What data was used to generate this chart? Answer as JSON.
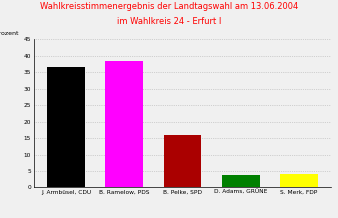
{
  "title_line1": "Wahlkreisstimmenergebnis der Landtagswahl am 13.06.2004",
  "title_line2": "im Wahlkreis 24 - Erfurt I",
  "title_color": "#ff0000",
  "ylabel": "Prozent",
  "categories": [
    "J. Armbüsel, CDU",
    "B. Ramelow, PDS",
    "B. Pelke, SPD",
    "D. Adams, GRÜNE",
    "S. Merk, FDP"
  ],
  "values": [
    36.5,
    38.5,
    16.0,
    3.8,
    4.0
  ],
  "bar_colors": [
    "#000000",
    "#ff00ff",
    "#aa0000",
    "#008000",
    "#ffff00"
  ],
  "ylim": [
    0,
    45
  ],
  "yticks": [
    0,
    5,
    10,
    15,
    20,
    25,
    30,
    35,
    40,
    45
  ],
  "background_color": "#f0f0f0",
  "grid_color": "#b0b0b0",
  "title_fontsize": 6.0,
  "tick_fontsize": 4.2,
  "ylabel_fontsize": 4.5
}
